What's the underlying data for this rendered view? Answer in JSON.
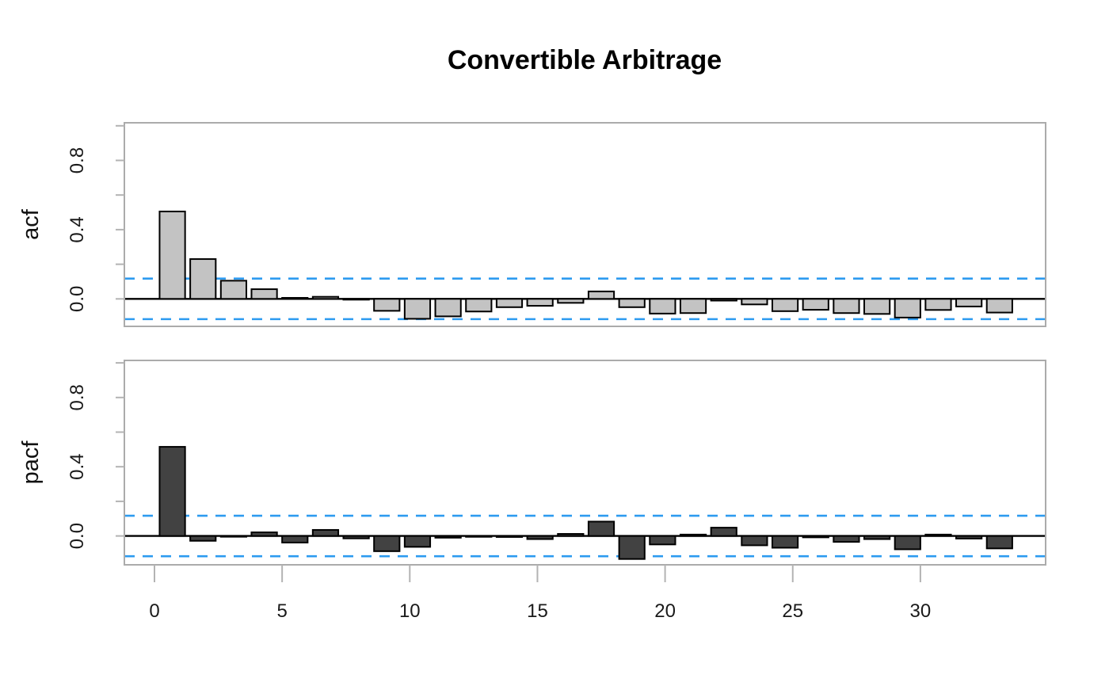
{
  "title": "Convertible Arbitrage",
  "colors": {
    "confidence_band": "#2D9BF0",
    "frame": "#ababab",
    "tick": "#b3b3b3",
    "zero_line": "#000000",
    "acf_bar_fill": "#c3c3c3",
    "pacf_bar_fill": "#424242",
    "bar_stroke": "#000000",
    "background": "#ffffff"
  },
  "chart_data": [
    {
      "type": "bar",
      "name": "acf",
      "ylabel": "acf",
      "lags": [
        1,
        2,
        3,
        4,
        5,
        6,
        7,
        8,
        9,
        10,
        11,
        12,
        13,
        14,
        15,
        16,
        17,
        18,
        19,
        20,
        21,
        22,
        23,
        24,
        25,
        26,
        27,
        28
      ],
      "values": [
        0.505,
        0.23,
        0.105,
        0.056,
        0.006,
        0.012,
        -0.004,
        -0.069,
        -0.115,
        -0.101,
        -0.073,
        -0.048,
        -0.04,
        -0.023,
        0.043,
        -0.048,
        -0.085,
        -0.082,
        -0.01,
        -0.032,
        -0.071,
        -0.063,
        -0.082,
        -0.087,
        -0.108,
        -0.064,
        -0.044,
        -0.079
      ],
      "conf_band": 0.117,
      "xtick_values": [
        0,
        5,
        10,
        15,
        20,
        25,
        30
      ],
      "xtick_labels": [
        "0",
        "5",
        "10",
        "15",
        "20",
        "25",
        "30"
      ],
      "ytick_label_values": [
        0.0,
        0.4,
        0.8
      ],
      "ytick_labels": [
        "0.0",
        "0.4",
        "0.8"
      ],
      "ytick_minor_step": 0.2,
      "ylim": [
        -0.16,
        1.02
      ],
      "show_xaxis": false,
      "grid": false,
      "legend": "none"
    },
    {
      "type": "bar",
      "name": "pacf",
      "ylabel": "pacf",
      "lags": [
        1,
        2,
        3,
        4,
        5,
        6,
        7,
        8,
        9,
        10,
        11,
        12,
        13,
        14,
        15,
        16,
        17,
        18,
        19,
        20,
        21,
        22,
        23,
        24,
        25,
        26,
        27,
        28
      ],
      "values": [
        0.515,
        -0.028,
        -0.004,
        0.021,
        -0.038,
        0.035,
        -0.014,
        -0.088,
        -0.063,
        -0.01,
        -0.005,
        -0.006,
        -0.018,
        0.012,
        0.083,
        -0.133,
        -0.049,
        0.008,
        0.048,
        -0.054,
        -0.068,
        -0.008,
        -0.034,
        -0.018,
        -0.077,
        0.008,
        -0.015,
        -0.072
      ],
      "conf_band": 0.117,
      "xtick_values": [
        0,
        5,
        10,
        15,
        20,
        25,
        30
      ],
      "xtick_labels": [
        "0",
        "5",
        "10",
        "15",
        "20",
        "25",
        "30"
      ],
      "ytick_label_values": [
        0.0,
        0.4,
        0.8
      ],
      "ytick_labels": [
        "0.0",
        "0.4",
        "0.8"
      ],
      "ytick_minor_step": 0.2,
      "ylim": [
        -0.16,
        1.02
      ],
      "show_xaxis": true,
      "grid": false,
      "legend": "none"
    }
  ]
}
